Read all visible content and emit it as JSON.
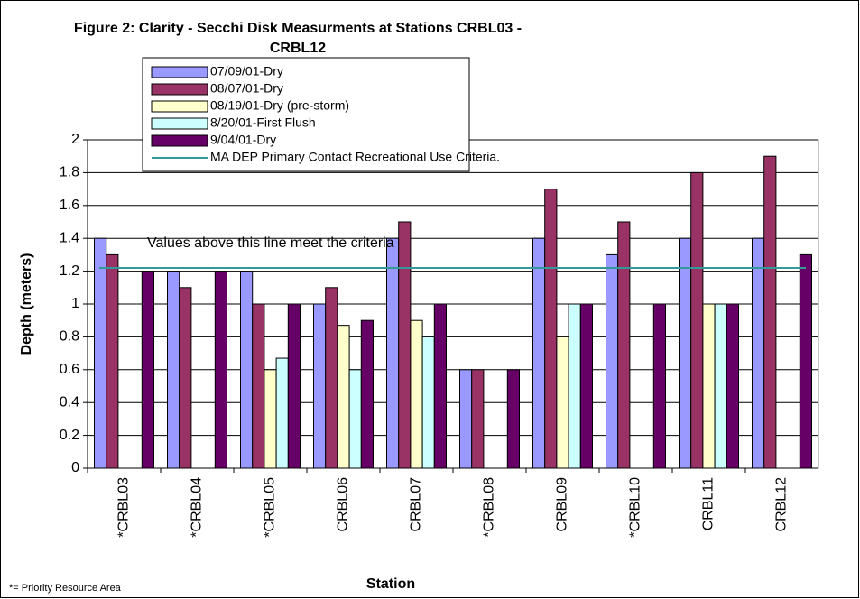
{
  "chart_data": {
    "type": "bar",
    "title": "Figure 2: Clarity - Secchi Disk Measurments at Stations CRBL03 - CRBL12",
    "x_label": "Station",
    "y_label": "Depth (meters)",
    "footnote": "*= Priority Resource Area",
    "annotation": "Values above this line meet the criteria",
    "categories": [
      "*CRBL03",
      "*CRBL04",
      "*CRBL05",
      "CRBL06",
      "CRBL07",
      "*CRBL08",
      "CRBL09",
      "*CRBL10",
      "CRBL11",
      "CRBL12"
    ],
    "series": [
      {
        "name": "07/09/01-Dry",
        "color": "#9999ff",
        "values": [
          1.4,
          1.2,
          1.2,
          1.0,
          1.4,
          0.6,
          1.4,
          1.3,
          1.4,
          1.4
        ]
      },
      {
        "name": "08/07/01-Dry",
        "color": "#993366",
        "values": [
          1.3,
          1.1,
          1.0,
          1.1,
          1.5,
          0.6,
          1.7,
          1.5,
          1.8,
          1.9
        ]
      },
      {
        "name": "08/19/01-Dry (pre-storm)",
        "color": "#ffffcc",
        "values": [
          null,
          null,
          0.6,
          0.87,
          0.9,
          null,
          0.8,
          null,
          1.0,
          null
        ]
      },
      {
        "name": "8/20/01-First Flush",
        "color": "#ccffff",
        "values": [
          null,
          null,
          0.67,
          0.6,
          0.8,
          null,
          1.0,
          null,
          1.0,
          null
        ]
      },
      {
        "name": "9/04/01-Dry",
        "color": "#660066",
        "values": [
          1.2,
          1.2,
          1.0,
          0.9,
          1.0,
          0.6,
          1.0,
          1.0,
          1.0,
          1.3
        ]
      }
    ],
    "reference_line": {
      "name": "MA DEP Primary Contact Recreational Use Criteria.",
      "value": 1.22,
      "color": "#339999"
    },
    "ylim": [
      0,
      2
    ],
    "yticks": [
      0,
      0.2,
      0.4,
      0.6,
      0.8,
      1,
      1.2,
      1.4,
      1.6,
      1.8,
      2
    ],
    "grid": true
  }
}
